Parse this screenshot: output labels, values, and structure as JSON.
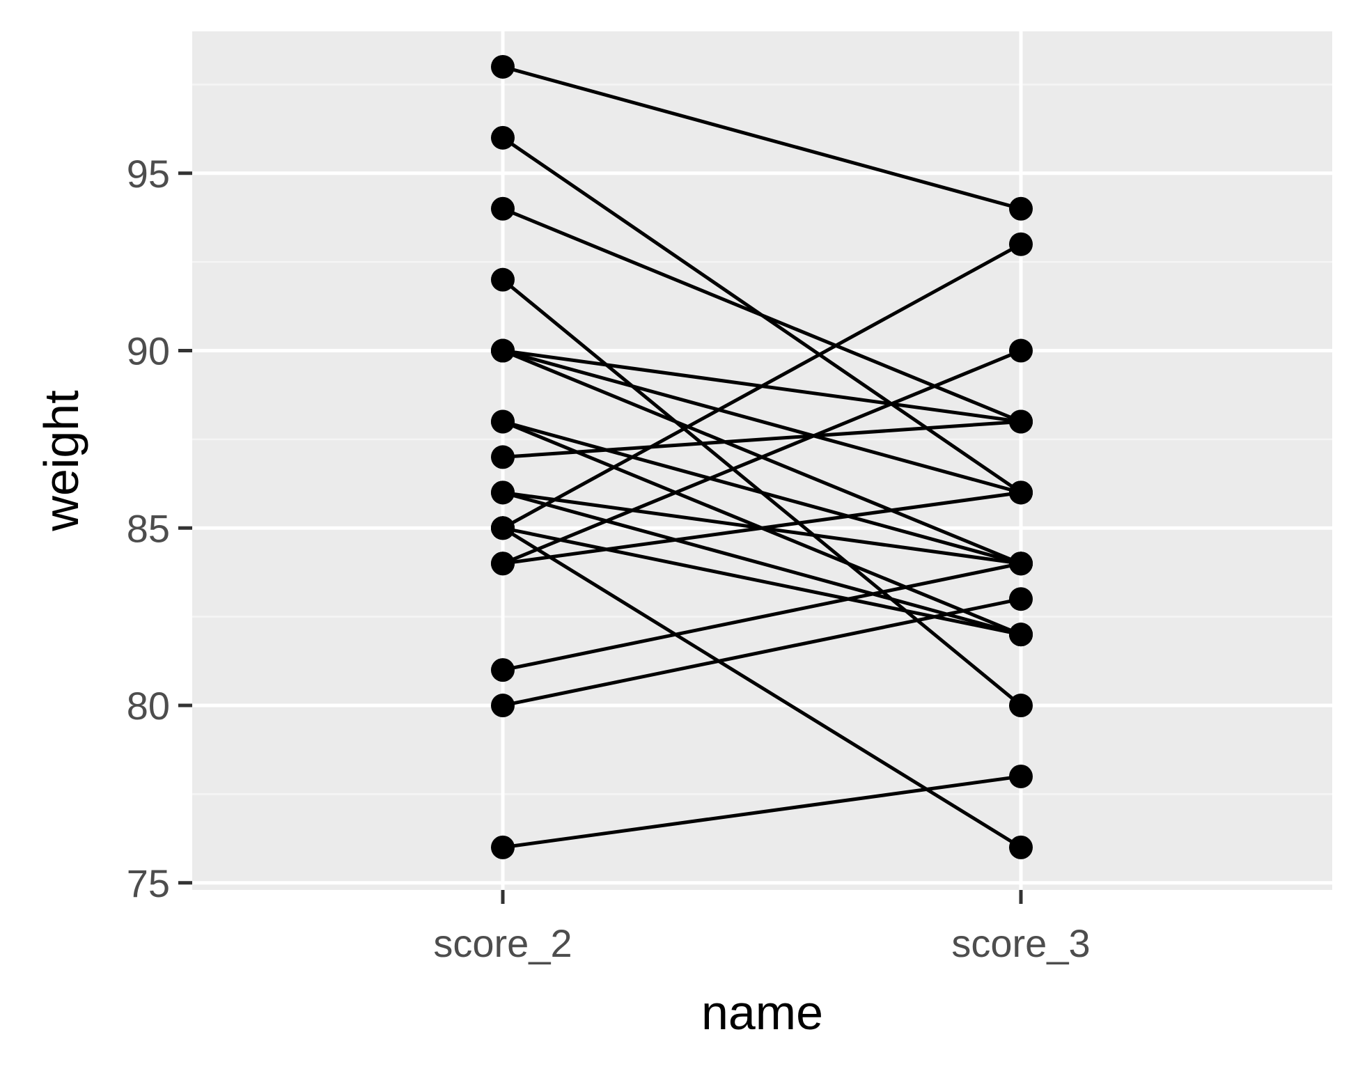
{
  "chart_data": {
    "type": "line",
    "xlabel": "name",
    "ylabel": "weight",
    "categories": [
      "score_2",
      "score_3"
    ],
    "y_ticks": [
      "75",
      "80",
      "85",
      "90",
      "95"
    ],
    "ylim": [
      74.8,
      99
    ],
    "grid": true,
    "legend": "none",
    "series": [
      {
        "values": [
          98,
          94
        ]
      },
      {
        "values": [
          96,
          86
        ]
      },
      {
        "values": [
          94,
          88
        ]
      },
      {
        "values": [
          92,
          80
        ]
      },
      {
        "values": [
          90,
          88
        ]
      },
      {
        "values": [
          90,
          86
        ]
      },
      {
        "values": [
          90,
          84
        ]
      },
      {
        "values": [
          88,
          84
        ]
      },
      {
        "values": [
          88,
          82
        ]
      },
      {
        "values": [
          87,
          88
        ]
      },
      {
        "values": [
          86,
          84
        ]
      },
      {
        "values": [
          86,
          82
        ]
      },
      {
        "values": [
          85,
          93
        ]
      },
      {
        "values": [
          85,
          82
        ]
      },
      {
        "values": [
          85,
          76
        ]
      },
      {
        "values": [
          84,
          90
        ]
      },
      {
        "values": [
          84,
          86
        ]
      },
      {
        "values": [
          81,
          84
        ]
      },
      {
        "values": [
          80,
          83
        ]
      },
      {
        "values": [
          76,
          78
        ]
      }
    ]
  },
  "colors": {
    "panel_background": "#ebebeb",
    "grid_major": "#ffffff",
    "grid_minor": "#f5f5f5",
    "line": "#000000",
    "point": "#000000",
    "tick_label": "#4d4d4d",
    "tick_mark": "#333333",
    "axis_title": "#000000"
  }
}
